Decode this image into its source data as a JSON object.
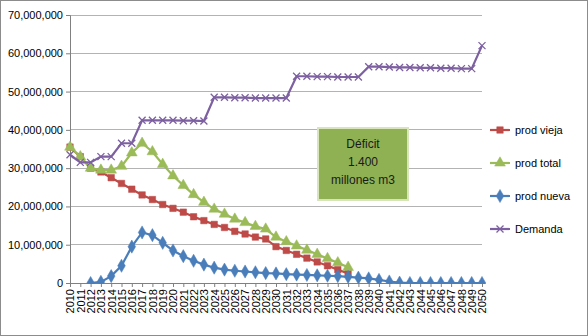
{
  "chart_data": {
    "type": "line",
    "categories": [
      "2010",
      "2011",
      "2012",
      "2013",
      "2014",
      "2015",
      "2016",
      "2017",
      "2018",
      "2019",
      "2020",
      "2021",
      "2022",
      "2023",
      "2024",
      "2025",
      "2026",
      "2027",
      "2028",
      "2029",
      "2030",
      "2031",
      "2032",
      "2033",
      "2034",
      "2035",
      "2036",
      "2037",
      "2038",
      "2039",
      "2040",
      "2041",
      "2042",
      "2043",
      "2044",
      "2045",
      "2046",
      "2047",
      "2048",
      "2049",
      "2050"
    ],
    "series": [
      {
        "name": "prod vieja",
        "color": "#BE4B48",
        "marker": "square",
        "values": [
          35500000,
          33000000,
          30000000,
          29000000,
          27500000,
          26000000,
          24500000,
          23000000,
          21800000,
          20500000,
          19500000,
          18500000,
          17300000,
          16300000,
          15300000,
          14500000,
          13500000,
          12800000,
          12000000,
          11500000,
          9500000,
          8500000,
          7500000,
          6500000,
          5500000,
          4500000,
          3500000,
          2500000,
          null,
          null,
          null,
          null,
          null,
          null,
          null,
          null,
          null,
          null,
          null,
          null,
          null
        ]
      },
      {
        "name": "prod total",
        "color": "#9BBB59",
        "marker": "triangle",
        "values": [
          35500000,
          33000000,
          30000000,
          29500000,
          29500000,
          30500000,
          34000000,
          36500000,
          34300000,
          31000000,
          28000000,
          25500000,
          23100000,
          21100000,
          19300000,
          18000000,
          16700000,
          15800000,
          14800000,
          14100000,
          12000000,
          10800000,
          9700000,
          8600000,
          7500000,
          6400000,
          5300000,
          4100000,
          null,
          null,
          null,
          null,
          null,
          null,
          null,
          null,
          null,
          null,
          null,
          null,
          null
        ]
      },
      {
        "name": "prod nueva",
        "color": "#4A7EBB",
        "marker": "diamond",
        "values": [
          null,
          null,
          0,
          300000,
          1800000,
          4500000,
          9500000,
          13200000,
          12500000,
          10500000,
          8500000,
          7000000,
          5800000,
          4800000,
          4000000,
          3500000,
          3200000,
          3000000,
          2800000,
          2600000,
          2500000,
          2300000,
          2200000,
          2100000,
          2000000,
          1900000,
          1800000,
          1600000,
          1400000,
          1200000,
          800000,
          400000,
          100000,
          0,
          0,
          0,
          0,
          0,
          0,
          0,
          0
        ]
      },
      {
        "name": "Demanda",
        "color": "#7D60A0",
        "marker": "x",
        "values": [
          33500000,
          31500000,
          31500000,
          33000000,
          33000000,
          36500000,
          36500000,
          42500000,
          42500000,
          42500000,
          42500000,
          42400000,
          42400000,
          42300000,
          48500000,
          48500000,
          48400000,
          48400000,
          48300000,
          48300000,
          48300000,
          48300000,
          54000000,
          54000000,
          53900000,
          53900000,
          53800000,
          53800000,
          53800000,
          56500000,
          56500000,
          56400000,
          56300000,
          56300000,
          56200000,
          56200000,
          56100000,
          56100000,
          56000000,
          56000000,
          62000000
        ]
      }
    ],
    "ylim": [
      0,
      70000000
    ],
    "yticks": [
      0,
      {
        "value": 10000000,
        "label": "10,000,000"
      },
      {
        "value": 20000000,
        "label": "20,000,000"
      },
      {
        "value": 30000000,
        "label": "30,000,000"
      },
      {
        "value": 40000000,
        "label": "40,000,000"
      },
      {
        "value": 50000000,
        "label": "50,000,000"
      },
      {
        "value": 60000000,
        "label": "60,000,000"
      },
      {
        "value": 70000000,
        "label": "70,000,000"
      }
    ],
    "grid": true,
    "legend": "right",
    "annotation": [
      "Déficit",
      "1.400",
      "millones m3"
    ]
  }
}
